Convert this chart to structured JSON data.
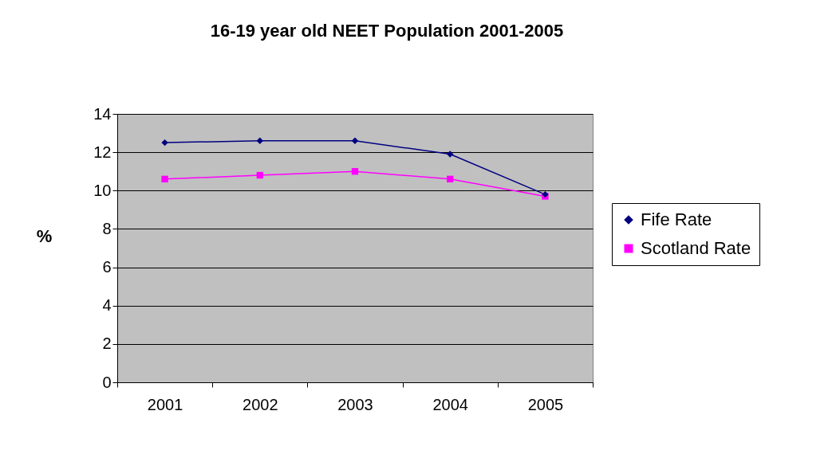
{
  "chart_data": {
    "type": "line",
    "title": "16-19 year old NEET Population 2001-2005",
    "ylabel": "%",
    "categories": [
      "2001",
      "2002",
      "2003",
      "2004",
      "2005"
    ],
    "series": [
      {
        "name": "Fife Rate",
        "color": "#000080",
        "marker": "diamond",
        "values": [
          12.5,
          12.6,
          12.6,
          11.9,
          9.8
        ]
      },
      {
        "name": "Scotland Rate",
        "color": "#ff00ff",
        "marker": "square",
        "values": [
          10.6,
          10.8,
          11.0,
          10.6,
          9.7
        ]
      }
    ],
    "ylim": [
      0,
      14
    ],
    "yticks": [
      0,
      2,
      4,
      6,
      8,
      10,
      12,
      14
    ],
    "grid": "y",
    "legend": "right"
  }
}
